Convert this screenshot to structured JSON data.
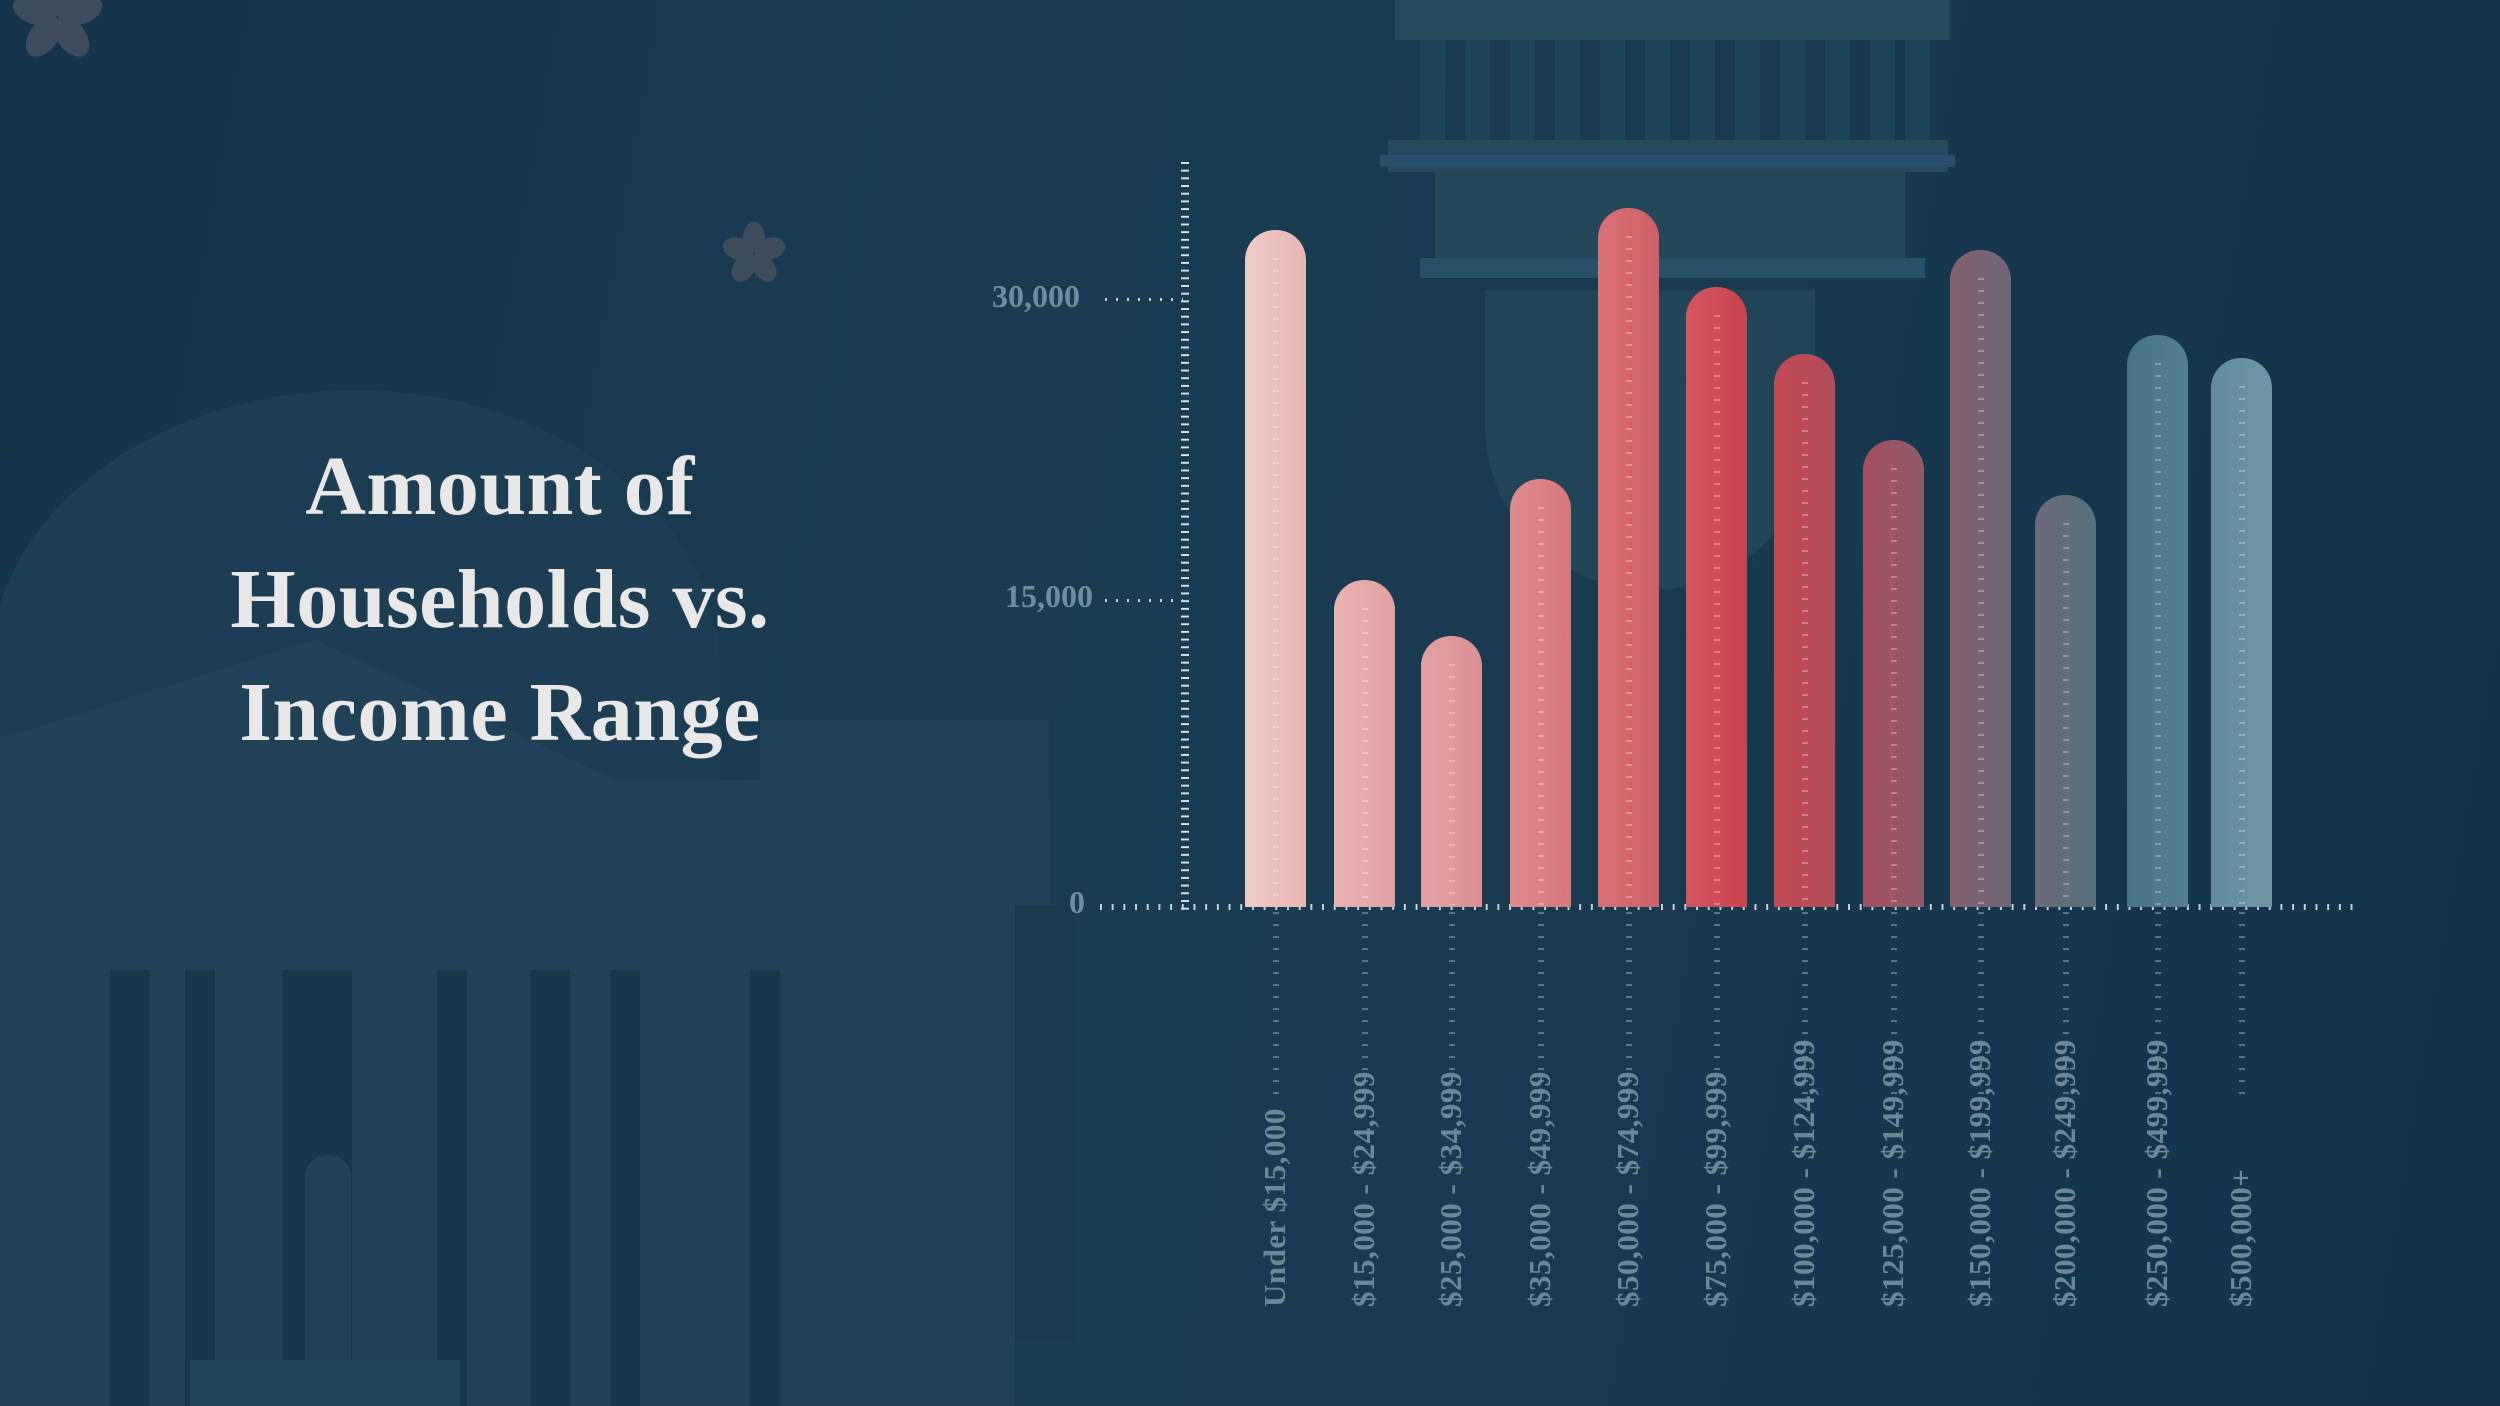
{
  "title": {
    "line1": "Amount of",
    "line2": "Households vs.",
    "line3": "Income Range"
  },
  "y_axis": {
    "ticks": [
      {
        "label": "30,000",
        "value": 30000
      },
      {
        "label": "15,000",
        "value": 15000
      },
      {
        "label": "0",
        "value": 0
      }
    ]
  },
  "categories": [
    {
      "label": "Under $15,000",
      "value": 33500,
      "color_left": "#efcbc7",
      "color_right": "#e8b6b3"
    },
    {
      "label": "$15,000 - $24,999",
      "value": 16200,
      "color_left": "#e9b4b1",
      "color_right": "#e1a0a1"
    },
    {
      "label": "$25,000 - $34,999",
      "value": 13400,
      "color_left": "#e2a2a3",
      "color_right": "#dc8f92"
    },
    {
      "label": "$35,000 - $49,999",
      "value": 21200,
      "color_left": "#df8b8d",
      "color_right": "#d7767b"
    },
    {
      "label": "$50,000 - $74,999",
      "value": 34600,
      "color_left": "#da7175",
      "color_right": "#d05f67"
    },
    {
      "label": "$75,000 - $99,999",
      "value": 30700,
      "color_left": "#d35660",
      "color_right": "#c8434d"
    },
    {
      "label": "$100,000 - $124,999",
      "value": 27400,
      "color_left": "#c34954",
      "color_right": "#b34c59"
    },
    {
      "label": "$125,000 - $149,999",
      "value": 23100,
      "color_left": "#a5505f",
      "color_right": "#905a6a"
    },
    {
      "label": "$150,000 - $199,999",
      "value": 32500,
      "color_left": "#85606f",
      "color_right": "#6e6678"
    },
    {
      "label": "$200,000 - $249,999",
      "value": 20400,
      "color_left": "#6c6a7a",
      "color_right": "#56717f"
    },
    {
      "label": "$250,000 - $499,999",
      "value": 28300,
      "color_left": "#477388",
      "color_right": "#55808f"
    },
    {
      "label": "$500,000+",
      "value": 27200,
      "color_left": "#618c9c",
      "color_right": "#7096a4"
    }
  ],
  "chart_data": {
    "type": "bar",
    "title": "Amount of Households vs. Income Range",
    "xlabel": "",
    "ylabel": "",
    "categories": [
      "Under $15,000",
      "$15,000 - $24,999",
      "$25,000 - $34,999",
      "$35,000 - $49,999",
      "$50,000 - $74,999",
      "$75,000 - $99,999",
      "$100,000 - $124,999",
      "$125,000 - $149,999",
      "$150,000 - $199,999",
      "$200,000 - $249,999",
      "$250,000 - $499,999",
      "$500,000+"
    ],
    "values": [
      33500,
      16200,
      13400,
      21200,
      34600,
      30700,
      27400,
      23100,
      32500,
      20400,
      28300,
      27200
    ],
    "yticks": [
      0,
      15000,
      30000
    ],
    "ylim": [
      0,
      36000
    ],
    "grid": "dotted horizontal at ticks",
    "legend": "none"
  }
}
